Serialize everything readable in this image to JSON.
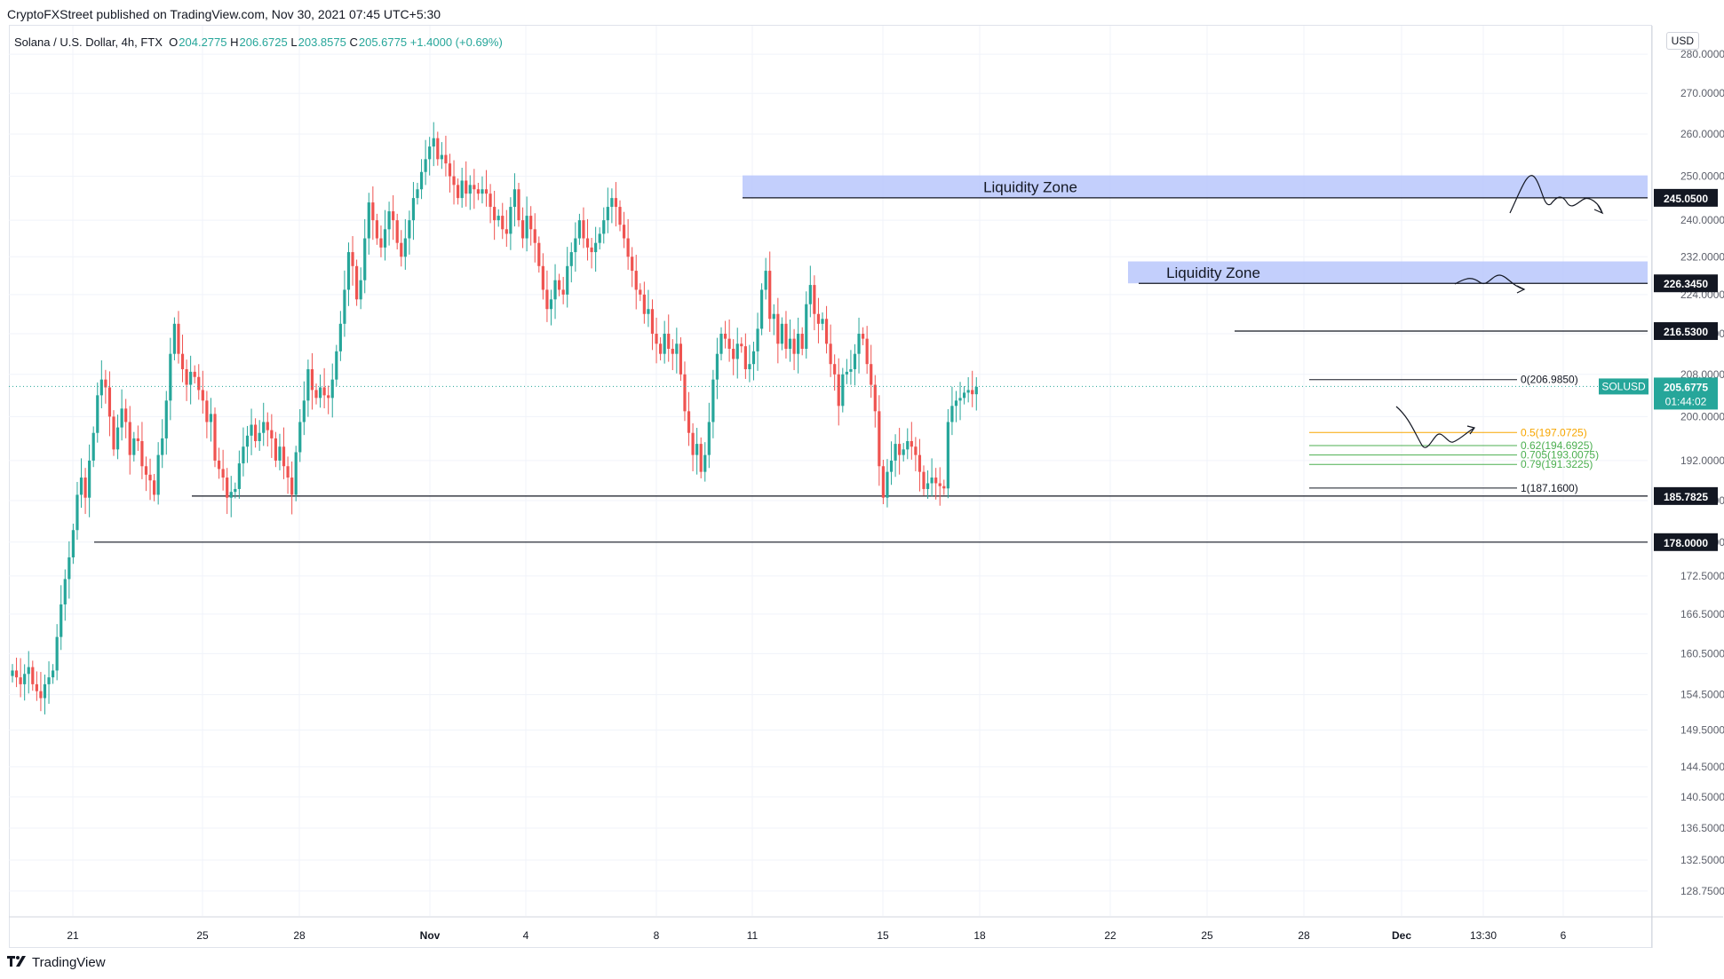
{
  "header": {
    "published": "CryptoFXStreet published on TradingView.com, Nov 30, 2021 07:45 UTC+5:30"
  },
  "legend": {
    "symbol": "Solana / U.S. Dollar, 4h, FTX",
    "o_label": "O",
    "o": "204.2775",
    "h_label": "H",
    "h": "206.6725",
    "l_label": "L",
    "l": "203.8575",
    "c_label": "C",
    "c": "205.6775",
    "change": "+1.4000 (+0.69%)"
  },
  "currency": "USD",
  "footer": {
    "brand": "TradingView"
  },
  "colors": {
    "up": "#26a69a",
    "down": "#ef5350",
    "zone": "#b8c7fb",
    "fib_05": "#f7a600",
    "fib_green": "#4caf50",
    "grid": "#f0f3fa"
  },
  "chart_data": {
    "type": "candlestick",
    "symbol": "SOLUSD",
    "y_scale": "log",
    "ylim": [
      125.8,
      287.5
    ],
    "y_ticks": [
      "280.0000",
      "270.0000",
      "260.0000",
      "250.0000",
      "240.0000",
      "232.0000",
      "224.0000",
      "216.0000",
      "208.0000",
      "200.0000",
      "192.0000",
      "185.0000",
      "178.0000",
      "172.5000",
      "166.5000",
      "160.5000",
      "154.5000",
      "149.5000",
      "144.5000",
      "140.5000",
      "136.5000",
      "132.5000",
      "128.7500"
    ],
    "x_ticks": [
      "21",
      "25",
      "28",
      "Nov",
      "4",
      "8",
      "11",
      "15",
      "18",
      "22",
      "25",
      "28",
      "Dec",
      "13:30",
      "6"
    ],
    "last_price": {
      "label": "SOLUSD",
      "value": "205.6775",
      "countdown": "01:44:02"
    },
    "horizontal_levels": [
      {
        "label": "245.0500",
        "value": 245.05
      },
      {
        "label": "226.3450",
        "value": 226.345
      },
      {
        "label": "216.5300",
        "value": 216.53
      },
      {
        "label": "185.7825",
        "value": 185.7825
      },
      {
        "label": "178.0000",
        "value": 178.0
      }
    ],
    "zones": [
      {
        "label": "Liquidity Zone",
        "top": 250.2,
        "bottom": 245.05
      },
      {
        "label": "Liquidity Zone",
        "top": 231.0,
        "bottom": 226.345
      }
    ],
    "fib_levels": [
      {
        "label": "0(206.9850)",
        "value": 206.985
      },
      {
        "label": "0.5(197.0725)",
        "value": 197.0725
      },
      {
        "label": "0.62(194.6925)",
        "value": 194.6925
      },
      {
        "label": "0.705(193.0075)",
        "value": 193.0075
      },
      {
        "label": "0.79(191.3225)",
        "value": 191.3225
      },
      {
        "label": "1(187.1600)",
        "value": 187.16
      }
    ],
    "series": [
      {
        "name": "SOLUSD",
        "close": [
          158.0,
          157.0,
          156.0,
          157.5,
          158.5,
          156.0,
          155.0,
          154.0,
          156.0,
          157.0,
          158.0,
          163.0,
          168.0,
          172.0,
          175.5,
          180.0,
          186.0,
          189.0,
          185.5,
          192.0,
          197.0,
          204.0,
          207.0,
          205.5,
          200.0,
          194.0,
          198.0,
          201.5,
          199.0,
          193.0,
          196.0,
          195.5,
          191.0,
          189.5,
          188.5,
          186.0,
          193.0,
          196.0,
          203.0,
          212.0,
          218.0,
          212.0,
          209.0,
          206.0,
          208.5,
          207.5,
          205.0,
          203.0,
          199.0,
          200.5,
          192.0,
          190.5,
          189.0,
          185.5,
          186.5,
          187.0,
          191.5,
          194.5,
          196.5,
          198.5,
          195.5,
          197.0,
          199.0,
          197.5,
          196.0,
          192.0,
          194.5,
          191.0,
          189.0,
          186.0,
          193.5,
          199.0,
          203.0,
          209.0,
          205.0,
          203.5,
          205.5,
          204.0,
          203.5,
          207.0,
          212.5,
          218.0,
          225.0,
          233.0,
          230.0,
          223.0,
          227.0,
          236.0,
          244.0,
          240.0,
          236.0,
          234.0,
          238.0,
          242.0,
          240.0,
          235.0,
          232.0,
          236.0,
          240.0,
          245.0,
          247.0,
          251.0,
          254.0,
          257.0,
          259.0,
          254.0,
          255.0,
          253.0,
          250.0,
          248.0,
          245.0,
          249.0,
          246.0,
          248.0,
          247.0,
          246.0,
          247.0,
          246.0,
          243.0,
          240.0,
          241.0,
          238.0,
          237.0,
          243.0,
          247.0,
          240.0,
          236.0,
          241.0,
          238.0,
          235.0,
          230.0,
          225.0,
          221.0,
          223.0,
          227.0,
          225.0,
          224.0,
          230.0,
          233.0,
          236.0,
          240.0,
          236.0,
          234.0,
          233.0,
          235.0,
          237.0,
          240.0,
          243.0,
          245.0,
          243.0,
          239.0,
          236.0,
          232.0,
          229.0,
          225.0,
          224.0,
          220.0,
          221.0,
          216.0,
          214.0,
          212.0,
          216.0,
          213.0,
          212.0,
          214.0,
          208.0,
          201.0,
          197.0,
          193.0,
          195.0,
          190.0,
          193.0,
          199.0,
          207.0,
          212.0,
          216.0,
          215.0,
          213.0,
          211.0,
          214.0,
          213.5,
          209.0,
          210.0,
          212.5,
          217.0,
          225.0,
          229.0,
          219.0,
          220.0,
          214.0,
          218.0,
          213.0,
          215.0,
          212.0,
          216.0,
          213.0,
          222.0,
          226.0,
          220.0,
          218.0,
          219.0,
          214.0,
          210.0,
          208.0,
          202.0,
          208.0,
          208.5,
          209.0,
          212.0,
          216.0,
          215.0,
          210.0,
          206.0,
          201.0,
          191.0,
          185.5,
          190.0,
          192.0,
          195.0,
          193.0,
          194.0,
          195.5,
          194.5,
          193.0,
          190.0,
          187.0,
          188.0,
          189.0,
          188.0,
          187.5,
          187.1,
          199.0,
          202.0,
          203.0,
          203.5,
          204.5,
          205.0,
          204.2,
          205.6
        ]
      },
      {
        "name": "Liquidity Zone"
      }
    ],
    "annotations": [
      "expected path sketch near 245 zone",
      "expected path sketch near 226 zone",
      "expected path sketch near 0.5 fib"
    ]
  }
}
